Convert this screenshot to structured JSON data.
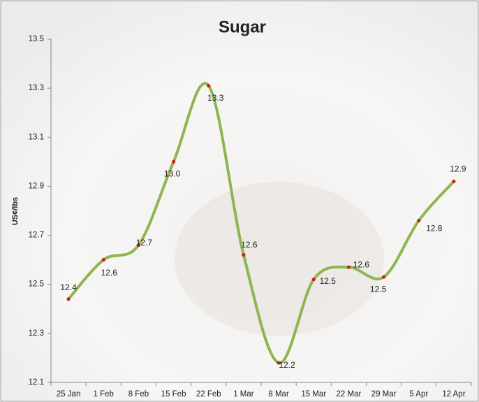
{
  "chart_data": {
    "type": "line",
    "title": "Sugar",
    "y_label": "US¢/lbs",
    "categories": [
      "25 Jan",
      "1 Feb",
      "8 Feb",
      "15 Feb",
      "22 Feb",
      "1 Mar",
      "8 Mar",
      "15 Mar",
      "22 Mar",
      "29 Mar",
      "5 Apr",
      "12 Apr"
    ],
    "series": [
      {
        "name": "Sugar",
        "color": "#8fb551",
        "marker_color": "#d0201a",
        "values": [
          12.44,
          12.6,
          12.66,
          13.0,
          13.31,
          12.62,
          12.18,
          12.52,
          12.57,
          12.53,
          12.76,
          12.92
        ],
        "value_labels": [
          "12.4",
          "12.6",
          "12.7",
          "13.0",
          "13.3",
          "12.6",
          "12.2",
          "12.5",
          "12.6",
          "12.5",
          "12.8",
          "12.9"
        ]
      }
    ],
    "ylim": [
      12.1,
      13.5
    ],
    "yticks": [
      12.1,
      12.3,
      12.5,
      12.7,
      12.9,
      13.1,
      13.3,
      13.5
    ],
    "grid": false
  }
}
